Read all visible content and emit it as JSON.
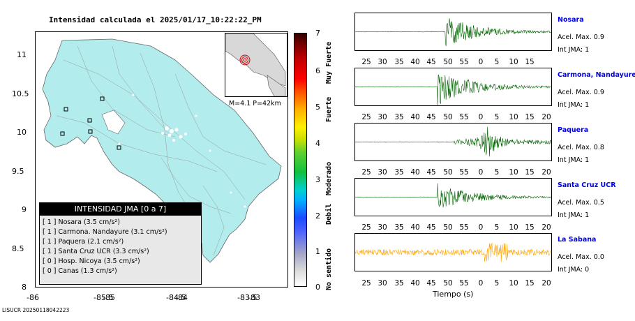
{
  "map": {
    "title": "Intensidad calculada el 2025/01/17_10:22:22_PM",
    "lat_ticks": [
      "11",
      "10.5",
      "10",
      "9.5",
      "9",
      "8.5",
      "8"
    ],
    "lon_ticks": [
      "-86",
      "-85.5",
      "-85",
      "-84.5",
      "-84",
      "-83.5",
      "-83"
    ],
    "inset_caption": "M=4.1 P=42km",
    "legend": {
      "header": "INTENSIDAD JMA [0 a 7]",
      "rows": [
        "[ 1 ]  Nosara (3.5 cm/s²)",
        "[ 1 ]  Carmona. Nandayure (3.1 cm/s²)",
        "[ 1 ]  Paquera (2.1 cm/s²)",
        "[ 1 ]  Santa Cruz UCR (3.3 cm/s²)",
        "[ 0 ]  Hosp. Nicoya (3.5 cm/s²)",
        "[ 0 ]  Canas (1.3 cm/s²)"
      ]
    },
    "land_color": "#b2ecec"
  },
  "colorbar": {
    "numbers": [
      "7",
      "6",
      "5",
      "4",
      "3",
      "2",
      "1",
      "0"
    ],
    "words": [
      "Muy Fuerte",
      "Fuerte",
      "Moderado",
      "Debil",
      "No sentido"
    ]
  },
  "traces": [
    {
      "name": "Nosara",
      "acel": "Acel. Max. 0.9",
      "int": "Int JMA: 1",
      "color": "#006400",
      "ticks": [
        "25",
        "30",
        "35",
        "40",
        "45",
        "50",
        "55",
        "0",
        "5",
        "10",
        "15"
      ]
    },
    {
      "name": "Carmona, Nandayure",
      "acel": "Acel. Max. 0.9",
      "int": "Int JMA: 1",
      "color": "#006400",
      "ticks": [
        "25",
        "30",
        "35",
        "40",
        "45",
        "50",
        "55",
        "0",
        "5",
        "10",
        "15",
        "20"
      ]
    },
    {
      "name": "Paquera",
      "acel": "Acel. Max. 0.8",
      "int": "Int JMA: 1",
      "color": "#006400",
      "ticks": [
        "25",
        "30",
        "35",
        "40",
        "45",
        "50",
        "55",
        "0",
        "5",
        "10",
        "15",
        "20"
      ]
    },
    {
      "name": "Santa Cruz UCR",
      "acel": "Acel. Max. 0.5",
      "int": "Int JMA: 1",
      "color": "#006400",
      "ticks": [
        "25",
        "30",
        "35",
        "40",
        "45",
        "50",
        "55",
        "0",
        "5",
        "10",
        "15",
        "20"
      ]
    },
    {
      "name": "La Sabana",
      "acel": "Acel. Max. 0.0",
      "int": "Int JMA: 0",
      "color": "#ffa500",
      "ticks": [
        "25",
        "30",
        "35",
        "40",
        "45",
        "50",
        "55",
        "0",
        "5",
        "10",
        "15",
        "20"
      ]
    }
  ],
  "xaxis_title": "Tiempo (s)",
  "footer": "LISUCR 20250118042223"
}
